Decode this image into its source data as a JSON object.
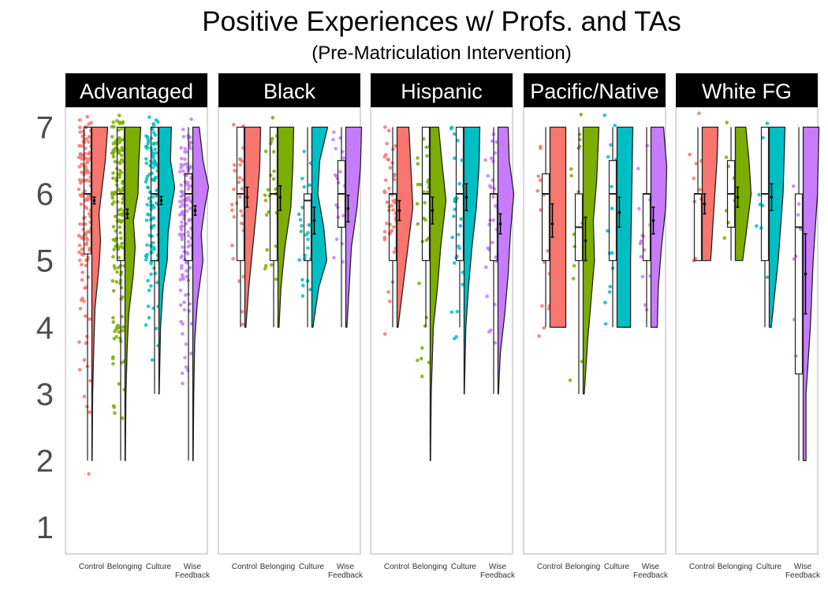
{
  "chart_data": {
    "type": "raincloud",
    "title": "Positive Experiences w/ Profs. and TAs",
    "subtitle": "(Pre-Matriculation Intervention)",
    "xlabel": "",
    "ylabel": "",
    "ylim": [
      0.6,
      7.3
    ],
    "y_ticks": [
      1,
      2,
      3,
      4,
      5,
      6,
      7
    ],
    "grid": false,
    "categories": [
      "Control",
      "Belonging",
      "Culture",
      "Wise Feedback"
    ],
    "category_tick_labels": [
      [
        "Control"
      ],
      [
        "Belonging"
      ],
      [
        "Culture"
      ],
      [
        "Wise",
        "Feedback"
      ]
    ],
    "category_colors": [
      "#F8766D",
      "#7CAE00",
      "#00BFC4",
      "#C77CFF"
    ],
    "panels": [
      {
        "name": "Advantaged",
        "groups": [
          {
            "category": "Control",
            "n_points": 140,
            "box": {
              "q1": 5.1,
              "median": 6.0,
              "q3": 7.0,
              "whisker_low": 2.0,
              "whisker_high": 7.0
            },
            "mean": 5.9,
            "ci": [
              5.85,
              5.95
            ],
            "density": [
              [
                2.0,
                0.02
              ],
              [
                3.0,
                0.05
              ],
              [
                3.7,
                0.12
              ],
              [
                4.3,
                0.2
              ],
              [
                4.9,
                0.45
              ],
              [
                5.3,
                0.55
              ],
              [
                5.7,
                0.45
              ],
              [
                6.1,
                0.65
              ],
              [
                6.5,
                0.85
              ],
              [
                7.0,
                1.0
              ]
            ]
          },
          {
            "category": "Belonging",
            "n_points": 150,
            "box": {
              "q1": 5.0,
              "median": 6.0,
              "q3": 7.0,
              "whisker_low": 2.0,
              "whisker_high": 7.0
            },
            "mean": 5.7,
            "ci": [
              5.63,
              5.77
            ],
            "density": [
              [
                2.0,
                0.02
              ],
              [
                3.0,
                0.05
              ],
              [
                3.7,
                0.12
              ],
              [
                4.2,
                0.2
              ],
              [
                4.8,
                0.45
              ],
              [
                5.2,
                0.55
              ],
              [
                5.6,
                0.45
              ],
              [
                6.0,
                0.7
              ],
              [
                6.5,
                0.75
              ],
              [
                7.0,
                0.85
              ]
            ]
          },
          {
            "category": "Culture",
            "n_points": 120,
            "box": {
              "q1": 5.0,
              "median": 6.0,
              "q3": 7.0,
              "whisker_low": 3.0,
              "whisker_high": 7.0
            },
            "mean": 5.9,
            "ci": [
              5.84,
              5.96
            ],
            "density": [
              [
                3.0,
                0.02
              ],
              [
                4.0,
                0.1
              ],
              [
                4.6,
                0.25
              ],
              [
                5.0,
                0.5
              ],
              [
                5.4,
                0.55
              ],
              [
                5.8,
                0.75
              ],
              [
                6.1,
                0.95
              ],
              [
                6.5,
                0.7
              ],
              [
                7.0,
                0.75
              ]
            ]
          },
          {
            "category": "Wise Feedback",
            "n_points": 130,
            "box": {
              "q1": 5.0,
              "median": 6.0,
              "q3": 6.3,
              "whisker_low": 2.0,
              "whisker_high": 7.0
            },
            "mean": 5.75,
            "ci": [
              5.68,
              5.82
            ],
            "density": [
              [
                2.0,
                0.02
              ],
              [
                3.0,
                0.05
              ],
              [
                3.8,
                0.1
              ],
              [
                4.4,
                0.25
              ],
              [
                5.0,
                0.55
              ],
              [
                5.4,
                0.45
              ],
              [
                5.8,
                0.65
              ],
              [
                6.1,
                0.85
              ],
              [
                6.5,
                0.55
              ],
              [
                7.0,
                0.35
              ]
            ]
          }
        ]
      },
      {
        "name": "Black",
        "groups": [
          {
            "category": "Control",
            "n_points": 30,
            "box": {
              "q1": 5.0,
              "median": 6.0,
              "q3": 7.0,
              "whisker_low": 4.0,
              "whisker_high": 7.0
            },
            "mean": 5.95,
            "ci": [
              5.8,
              6.1
            ],
            "density": [
              [
                4.0,
                0.05
              ],
              [
                4.6,
                0.2
              ],
              [
                5.2,
                0.4
              ],
              [
                5.8,
                0.6
              ],
              [
                6.4,
                0.75
              ],
              [
                7.0,
                0.8
              ]
            ]
          },
          {
            "category": "Belonging",
            "n_points": 25,
            "box": {
              "q1": 5.0,
              "median": 6.0,
              "q3": 7.0,
              "whisker_low": 4.0,
              "whisker_high": 7.0
            },
            "mean": 5.95,
            "ci": [
              5.75,
              6.12
            ],
            "density": [
              [
                4.0,
                0.05
              ],
              [
                4.6,
                0.15
              ],
              [
                5.2,
                0.35
              ],
              [
                5.8,
                0.65
              ],
              [
                6.4,
                0.75
              ],
              [
                7.0,
                0.8
              ]
            ]
          },
          {
            "category": "Culture",
            "n_points": 25,
            "box": {
              "q1": 5.0,
              "median": 5.9,
              "q3": 6.0,
              "whisker_low": 4.0,
              "whisker_high": 7.0
            },
            "mean": 5.6,
            "ci": [
              5.4,
              5.8
            ],
            "density": [
              [
                4.0,
                0.05
              ],
              [
                4.6,
                0.35
              ],
              [
                5.0,
                0.75
              ],
              [
                5.5,
                0.6
              ],
              [
                6.0,
                0.3
              ],
              [
                6.5,
                0.4
              ],
              [
                7.0,
                0.8
              ]
            ]
          },
          {
            "category": "Wise Feedback",
            "n_points": 20,
            "box": {
              "q1": 5.5,
              "median": 6.0,
              "q3": 6.5,
              "whisker_low": 4.0,
              "whisker_high": 7.0
            },
            "mean": 5.78,
            "ci": [
              5.58,
              5.98
            ],
            "density": [
              [
                4.0,
                0.05
              ],
              [
                4.6,
                0.15
              ],
              [
                5.2,
                0.25
              ],
              [
                5.8,
                0.5
              ],
              [
                6.4,
                0.65
              ],
              [
                7.0,
                0.7
              ]
            ]
          }
        ]
      },
      {
        "name": "Hispanic",
        "groups": [
          {
            "category": "Control",
            "n_points": 45,
            "box": {
              "q1": 5.0,
              "median": 6.0,
              "q3": 6.0,
              "whisker_low": 4.0,
              "whisker_high": 7.0
            },
            "mean": 5.75,
            "ci": [
              5.6,
              5.9
            ],
            "density": [
              [
                4.0,
                0.05
              ],
              [
                4.6,
                0.3
              ],
              [
                5.2,
                0.55
              ],
              [
                5.8,
                0.8
              ],
              [
                6.4,
                0.7
              ],
              [
                7.0,
                0.6
              ]
            ]
          },
          {
            "category": "Belonging",
            "n_points": 30,
            "box": {
              "q1": 5.0,
              "median": 6.0,
              "q3": 7.0,
              "whisker_low": 4.0,
              "whisker_high": 7.0
            },
            "mean": 5.75,
            "ci": [
              5.55,
              5.95
            ],
            "density": [
              [
                2.0,
                0.02
              ],
              [
                3.0,
                0.05
              ],
              [
                4.0,
                0.15
              ],
              [
                4.6,
                0.35
              ],
              [
                5.2,
                0.5
              ],
              [
                5.9,
                0.75
              ],
              [
                6.5,
                0.55
              ],
              [
                7.0,
                0.4
              ]
            ]
          },
          {
            "category": "Culture",
            "n_points": 30,
            "box": {
              "q1": 5.0,
              "median": 6.0,
              "q3": 7.0,
              "whisker_low": 4.0,
              "whisker_high": 7.0
            },
            "mean": 5.95,
            "ci": [
              5.75,
              6.15
            ],
            "density": [
              [
                3.0,
                0.02
              ],
              [
                4.0,
                0.1
              ],
              [
                4.6,
                0.25
              ],
              [
                5.2,
                0.45
              ],
              [
                5.8,
                0.7
              ],
              [
                6.4,
                0.85
              ],
              [
                7.0,
                0.9
              ]
            ]
          },
          {
            "category": "Wise Feedback",
            "n_points": 30,
            "box": {
              "q1": 5.0,
              "median": 6.0,
              "q3": 6.0,
              "whisker_low": 3.0,
              "whisker_high": 7.0
            },
            "mean": 5.55,
            "ci": [
              5.4,
              5.7
            ],
            "density": [
              [
                3.0,
                0.02
              ],
              [
                3.6,
                0.1
              ],
              [
                4.2,
                0.3
              ],
              [
                4.8,
                0.45
              ],
              [
                5.4,
                0.55
              ],
              [
                6.0,
                0.7
              ],
              [
                6.5,
                0.5
              ],
              [
                7.0,
                0.45
              ]
            ]
          }
        ]
      },
      {
        "name": "Pacific/Native",
        "groups": [
          {
            "category": "Control",
            "n_points": 15,
            "box": {
              "q1": 5.0,
              "median": 6.0,
              "q3": 6.3,
              "whisker_low": 4.0,
              "whisker_high": 7.0
            },
            "mean": 5.55,
            "ci": [
              5.35,
              5.85
            ],
            "density": [
              [
                4.0,
                0.55
              ],
              [
                7.0,
                0.55
              ]
            ]
          },
          {
            "category": "Belonging",
            "n_points": 15,
            "box": {
              "q1": 5.0,
              "median": 5.5,
              "q3": 6.0,
              "whisker_low": 3.0,
              "whisker_high": 7.0
            },
            "mean": 5.3,
            "ci": [
              5.0,
              5.65
            ],
            "density": [
              [
                3.0,
                0.05
              ],
              [
                3.8,
                0.2
              ],
              [
                4.4,
                0.35
              ],
              [
                5.0,
                0.5
              ],
              [
                5.6,
                0.45
              ],
              [
                6.2,
                0.6
              ],
              [
                7.0,
                0.7
              ]
            ]
          },
          {
            "category": "Culture",
            "n_points": 15,
            "box": {
              "q1": 5.0,
              "median": 6.0,
              "q3": 6.5,
              "whisker_low": 4.0,
              "whisker_high": 7.0
            },
            "mean": 5.72,
            "ci": [
              5.5,
              5.95
            ],
            "density": [
              [
                4.0,
                0.6
              ],
              [
                5.0,
                0.6
              ],
              [
                6.0,
                0.65
              ],
              [
                7.0,
                0.7
              ]
            ]
          },
          {
            "category": "Wise Feedback",
            "n_points": 15,
            "box": {
              "q1": 5.0,
              "median": 6.0,
              "q3": 6.0,
              "whisker_low": 4.0,
              "whisker_high": 7.0
            },
            "mean": 5.6,
            "ci": [
              5.4,
              5.8
            ],
            "density": [
              [
                4.0,
                0.3
              ],
              [
                4.6,
                0.35
              ],
              [
                5.2,
                0.5
              ],
              [
                5.8,
                0.7
              ],
              [
                6.4,
                0.75
              ],
              [
                7.0,
                0.6
              ]
            ]
          }
        ]
      },
      {
        "name": "White FG",
        "groups": [
          {
            "category": "Control",
            "n_points": 10,
            "box": {
              "q1": 5.0,
              "median": 6.0,
              "q3": 6.0,
              "whisker_low": 5.0,
              "whisker_high": 7.0
            },
            "mean": 5.85,
            "ci": [
              5.7,
              6.0
            ],
            "density": [
              [
                5.0,
                0.4
              ],
              [
                5.5,
                0.5
              ],
              [
                6.0,
                0.6
              ],
              [
                6.5,
                0.7
              ],
              [
                7.0,
                0.75
              ]
            ]
          },
          {
            "category": "Belonging",
            "n_points": 8,
            "box": {
              "q1": 5.5,
              "median": 6.0,
              "q3": 6.5,
              "whisker_low": 5.0,
              "whisker_high": 7.0
            },
            "mean": 5.95,
            "ci": [
              5.8,
              6.1
            ],
            "density": [
              [
                5.0,
                0.35
              ],
              [
                5.5,
                0.55
              ],
              [
                6.0,
                0.75
              ],
              [
                6.5,
                0.65
              ],
              [
                7.0,
                0.5
              ]
            ]
          },
          {
            "category": "Culture",
            "n_points": 8,
            "box": {
              "q1": 5.0,
              "median": 6.0,
              "q3": 7.0,
              "whisker_low": 4.0,
              "whisker_high": 7.0
            },
            "mean": 5.95,
            "ci": [
              5.75,
              6.15
            ],
            "density": [
              [
                4.0,
                0.1
              ],
              [
                5.0,
                0.45
              ],
              [
                6.0,
                0.7
              ],
              [
                7.0,
                0.8
              ]
            ]
          },
          {
            "category": "Wise Feedback",
            "n_points": 8,
            "box": {
              "q1": 3.3,
              "median": 5.5,
              "q3": 6.0,
              "whisker_low": 2.0,
              "whisker_high": 7.0
            },
            "mean": 4.8,
            "ci": [
              4.2,
              5.4
            ],
            "density": [
              [
                2.0,
                0.1
              ],
              [
                3.0,
                0.1
              ],
              [
                4.0,
                0.25
              ],
              [
                5.0,
                0.35
              ],
              [
                6.0,
                0.5
              ],
              [
                7.0,
                0.55
              ]
            ]
          }
        ]
      }
    ]
  }
}
